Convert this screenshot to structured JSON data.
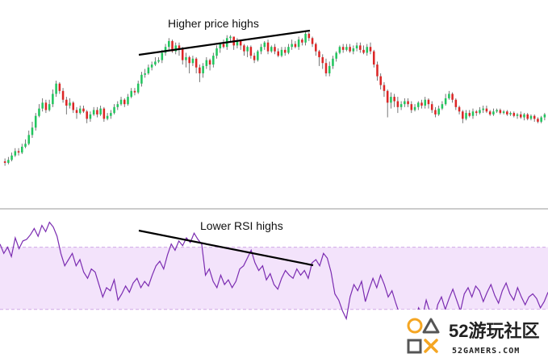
{
  "colors": {
    "bull": "#22c55e",
    "bear": "#dc2626",
    "wick": "#555555",
    "rsi_line": "#7b2cb1",
    "rsi_band_fill": "#f3e3fb",
    "rsi_band_border": "#cfa8e6",
    "divider": "#9a9a9a",
    "trendline": "#000000",
    "logo_orange": "#f5a623",
    "logo_gray": "#555555"
  },
  "annotations": {
    "price_label": "Higher price highs",
    "rsi_label": "Lower RSI highs"
  },
  "watermark": {
    "brand": "52游玩社区",
    "site": "52GAMERS.COM",
    "icon": "playstation-buttons-icon"
  },
  "chart_data": [
    {
      "type": "candlestick",
      "panel": "price",
      "title": "",
      "xlabel": "",
      "ylabel": "",
      "grid": false,
      "ylim": [
        0,
        100
      ],
      "candles": [
        [
          12,
          11,
          14,
          9
        ],
        [
          11,
          13,
          15,
          10
        ],
        [
          13,
          16,
          18,
          12
        ],
        [
          16,
          19,
          21,
          15
        ],
        [
          19,
          18,
          21,
          16
        ],
        [
          18,
          22,
          24,
          17
        ],
        [
          22,
          24,
          27,
          21
        ],
        [
          24,
          30,
          33,
          23
        ],
        [
          30,
          35,
          39,
          28
        ],
        [
          35,
          43,
          45,
          33
        ],
        [
          43,
          48,
          51,
          42
        ],
        [
          48,
          52,
          55,
          46
        ],
        [
          52,
          47,
          54,
          45
        ],
        [
          47,
          51,
          54,
          46
        ],
        [
          51,
          58,
          61,
          49
        ],
        [
          58,
          65,
          67,
          56
        ],
        [
          65,
          60,
          66,
          58
        ],
        [
          60,
          54,
          62,
          52
        ],
        [
          54,
          50,
          56,
          44
        ],
        [
          50,
          52,
          55,
          48
        ],
        [
          52,
          47,
          53,
          45
        ],
        [
          47,
          45,
          49,
          41
        ],
        [
          45,
          48,
          50,
          44
        ],
        [
          48,
          46,
          50,
          45
        ],
        [
          46,
          41,
          47,
          38
        ],
        [
          41,
          44,
          46,
          39
        ],
        [
          44,
          47,
          49,
          43
        ],
        [
          47,
          44,
          49,
          42
        ],
        [
          44,
          48,
          50,
          43
        ],
        [
          48,
          41,
          49,
          39
        ],
        [
          41,
          43,
          45,
          40
        ],
        [
          43,
          45,
          47,
          41
        ],
        [
          45,
          49,
          51,
          44
        ],
        [
          49,
          51,
          53,
          47
        ],
        [
          51,
          54,
          56,
          50
        ],
        [
          54,
          51,
          55,
          49
        ],
        [
          51,
          56,
          58,
          50
        ],
        [
          56,
          60,
          62,
          55
        ],
        [
          60,
          59,
          62,
          57
        ],
        [
          59,
          65,
          67,
          58
        ],
        [
          65,
          71,
          73,
          63
        ],
        [
          71,
          72,
          75,
          69
        ],
        [
          72,
          76,
          78,
          71
        ],
        [
          76,
          78,
          80,
          74
        ],
        [
          78,
          80,
          83,
          77
        ],
        [
          80,
          81,
          83,
          79
        ],
        [
          81,
          86,
          88,
          79
        ],
        [
          86,
          90,
          92,
          84
        ],
        [
          90,
          94,
          96,
          88
        ],
        [
          94,
          87,
          95,
          86
        ],
        [
          87,
          91,
          93,
          85
        ],
        [
          91,
          89,
          93,
          84
        ],
        [
          89,
          81,
          90,
          78
        ],
        [
          81,
          83,
          86,
          76
        ],
        [
          83,
          79,
          84,
          72
        ],
        [
          79,
          82,
          84,
          77
        ],
        [
          82,
          76,
          83,
          72
        ],
        [
          76,
          72,
          78,
          66
        ],
        [
          72,
          77,
          79,
          69
        ],
        [
          77,
          81,
          83,
          75
        ],
        [
          81,
          78,
          82,
          74
        ],
        [
          78,
          84,
          86,
          76
        ],
        [
          84,
          89,
          91,
          82
        ],
        [
          89,
          92,
          93,
          86
        ],
        [
          92,
          90,
          95,
          89
        ],
        [
          90,
          96,
          98,
          88
        ],
        [
          96,
          97,
          98,
          93
        ],
        [
          97,
          91,
          97,
          88
        ],
        [
          91,
          94,
          96,
          89
        ],
        [
          94,
          91,
          95,
          88
        ],
        [
          91,
          87,
          92,
          84
        ],
        [
          87,
          90,
          91,
          83
        ],
        [
          90,
          84,
          91,
          82
        ],
        [
          84,
          81,
          86,
          79
        ],
        [
          81,
          87,
          88,
          80
        ],
        [
          87,
          90,
          92,
          85
        ],
        [
          90,
          93,
          94,
          88
        ],
        [
          93,
          87,
          95,
          85
        ],
        [
          87,
          90,
          91,
          86
        ],
        [
          90,
          87,
          92,
          85
        ],
        [
          87,
          84,
          89,
          83
        ],
        [
          84,
          88,
          90,
          83
        ],
        [
          88,
          86,
          90,
          84
        ],
        [
          86,
          90,
          92,
          85
        ],
        [
          90,
          92,
          95,
          88
        ],
        [
          92,
          90,
          94,
          89
        ],
        [
          90,
          95,
          97,
          88
        ],
        [
          95,
          93,
          96,
          91
        ],
        [
          93,
          99,
          100,
          91
        ],
        [
          99,
          96,
          100,
          94
        ],
        [
          96,
          92,
          97,
          90
        ],
        [
          92,
          87,
          93,
          84
        ],
        [
          87,
          83,
          88,
          77
        ],
        [
          83,
          79,
          85,
          75
        ],
        [
          79,
          72,
          82,
          70
        ],
        [
          72,
          77,
          80,
          70
        ],
        [
          77,
          82,
          84,
          75
        ],
        [
          82,
          86,
          87,
          80
        ],
        [
          86,
          90,
          91,
          85
        ],
        [
          90,
          88,
          92,
          86
        ],
        [
          88,
          90,
          92,
          87
        ],
        [
          90,
          87,
          92,
          86
        ],
        [
          87,
          89,
          91,
          85
        ],
        [
          89,
          91,
          93,
          87
        ],
        [
          91,
          88,
          93,
          86
        ],
        [
          88,
          86,
          91,
          85
        ],
        [
          86,
          90,
          92,
          84
        ],
        [
          90,
          87,
          93,
          85
        ],
        [
          87,
          78,
          88,
          76
        ],
        [
          78,
          70,
          80,
          67
        ],
        [
          70,
          64,
          72,
          61
        ],
        [
          64,
          60,
          66,
          56
        ],
        [
          60,
          52,
          61,
          42
        ],
        [
          52,
          56,
          59,
          48
        ],
        [
          56,
          53,
          58,
          49
        ],
        [
          53,
          49,
          56,
          45
        ],
        [
          49,
          51,
          53,
          47
        ],
        [
          51,
          53,
          55,
          49
        ],
        [
          53,
          51,
          55,
          49
        ],
        [
          51,
          47,
          53,
          45
        ],
        [
          47,
          49,
          51,
          46
        ],
        [
          49,
          52,
          53,
          47
        ],
        [
          52,
          50,
          54,
          48
        ],
        [
          50,
          54,
          56,
          48
        ],
        [
          54,
          51,
          55,
          48
        ],
        [
          51,
          47,
          53,
          45
        ],
        [
          47,
          44,
          49,
          42
        ],
        [
          44,
          48,
          50,
          43
        ],
        [
          48,
          51,
          53,
          47
        ],
        [
          51,
          55,
          58,
          50
        ],
        [
          55,
          58,
          60,
          54
        ],
        [
          58,
          54,
          59,
          52
        ],
        [
          54,
          49,
          55,
          47
        ],
        [
          49,
          46,
          50,
          44
        ],
        [
          46,
          41,
          47,
          38
        ],
        [
          41,
          45,
          47,
          40
        ],
        [
          45,
          43,
          47,
          42
        ],
        [
          43,
          46,
          48,
          41
        ],
        [
          46,
          45,
          47,
          43
        ],
        [
          45,
          47,
          49,
          44
        ],
        [
          47,
          48,
          50,
          45
        ],
        [
          48,
          46,
          50,
          45
        ],
        [
          46,
          44,
          47,
          43
        ],
        [
          44,
          46,
          48,
          43
        ],
        [
          46,
          47,
          48,
          45
        ],
        [
          47,
          45,
          48,
          44
        ],
        [
          45,
          46,
          47,
          44
        ],
        [
          46,
          44,
          47,
          43
        ],
        [
          44,
          45,
          46,
          43
        ],
        [
          45,
          43,
          46,
          42
        ],
        [
          43,
          44,
          45,
          41
        ],
        [
          44,
          42,
          46,
          41
        ],
        [
          42,
          44,
          45,
          40
        ],
        [
          44,
          41,
          45,
          40
        ],
        [
          41,
          43,
          44,
          40
        ],
        [
          43,
          41,
          44,
          39
        ],
        [
          41,
          39,
          42,
          38
        ],
        [
          39,
          42,
          43,
          38
        ],
        [
          42,
          44,
          45,
          40
        ]
      ],
      "candle_format": [
        "open",
        "close",
        "high",
        "low"
      ],
      "annotation": "Higher price highs"
    },
    {
      "type": "line",
      "panel": "rsi",
      "title": "",
      "xlabel": "",
      "ylabel": "",
      "grid": false,
      "ylim": [
        5,
        90
      ],
      "band": [
        30,
        70
      ],
      "series": [
        {
          "values": [
            72,
            66,
            70,
            64,
            76,
            69,
            74,
            75,
            78,
            82,
            77,
            84,
            80,
            86,
            83,
            77,
            66,
            58,
            62,
            66,
            58,
            62,
            54,
            50,
            56,
            54,
            46,
            38,
            44,
            42,
            49,
            36,
            40,
            45,
            41,
            47,
            50,
            44,
            48,
            45,
            52,
            58,
            61,
            56,
            65,
            72,
            68,
            74,
            71,
            76,
            73,
            79,
            75,
            72,
            52,
            56,
            48,
            44,
            52,
            46,
            49,
            44,
            48,
            56,
            58,
            63,
            68,
            60,
            55,
            58,
            49,
            53,
            46,
            43,
            50,
            55,
            52,
            50,
            56,
            52,
            55,
            50,
            60,
            62,
            58,
            66,
            63,
            54,
            40,
            36,
            29,
            24,
            38,
            46,
            42,
            48,
            35,
            43,
            50,
            44,
            52,
            46,
            38,
            42,
            34,
            27,
            23,
            20,
            14,
            24,
            31,
            25,
            36,
            28,
            20,
            33,
            38,
            30,
            37,
            43,
            36,
            29,
            40,
            44,
            38,
            45,
            42,
            35,
            41,
            46,
            39,
            34,
            42,
            47,
            40,
            36,
            44,
            38,
            33,
            38,
            40,
            37,
            31,
            35,
            41
          ]
        }
      ],
      "annotation": "Lower RSI highs"
    }
  ]
}
